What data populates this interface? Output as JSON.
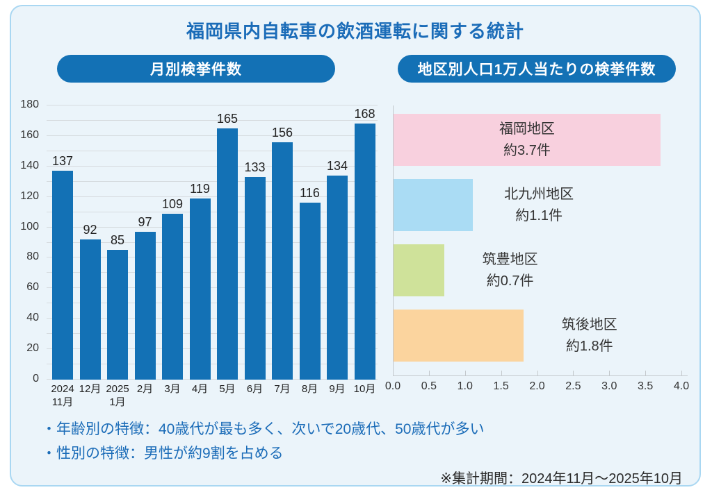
{
  "card": {
    "title": "福岡県内自転車の飲酒運転に関する統計",
    "bullets": [
      "・年齢別の特徴：40歳代が最も多く、次いで20歳代、50歳代が多い",
      "・性別の特徴：男性が約9割を占める"
    ],
    "note": "※集計期間：2024年11月～2025年10月"
  },
  "colors": {
    "accent_blue": "#1371b5",
    "title_blue": "#1b6cb8",
    "card_bg": "#ebf4fa",
    "card_border": "#a9d7f2",
    "gridline": "#d6dbdf",
    "axis_line": "#c3c8cc",
    "text_dark": "#2b2b2b"
  },
  "chart_data": [
    {
      "type": "bar",
      "orientation": "vertical",
      "title": "月別検挙件数",
      "categories": [
        "2024|11月",
        "12月",
        "2025|1月",
        "2月",
        "3月",
        "4月",
        "5月",
        "6月",
        "7月",
        "8月",
        "9月",
        "10月"
      ],
      "values": [
        137,
        92,
        85,
        97,
        109,
        119,
        165,
        133,
        156,
        116,
        134,
        168
      ],
      "ylim": [
        0,
        180
      ],
      "y_major_ticks": [
        0,
        20,
        40,
        60,
        80,
        100,
        120,
        140,
        160,
        180
      ],
      "y_minor_step": 10,
      "grid": true,
      "bar_color": "#1371b5"
    },
    {
      "type": "bar",
      "orientation": "horizontal",
      "title": "地区別人口1万人当たりの検挙件数",
      "categories": [
        "福岡地区",
        "北九州地区",
        "筑豊地区",
        "筑後地区"
      ],
      "values": [
        3.7,
        1.1,
        0.7,
        1.8
      ],
      "value_labels": [
        "約3.7件",
        "約1.1件",
        "約0.7件",
        "約1.8件"
      ],
      "bar_colors": [
        "#f8d0de",
        "#aadcf4",
        "#cfe29a",
        "#fbd49e"
      ],
      "label_inside": [
        true,
        false,
        false,
        false
      ],
      "xlim": [
        0,
        4.0
      ],
      "x_ticks": [
        "0.0",
        "0.5",
        "1.0",
        "1.5",
        "2.0",
        "2.5",
        "3.0",
        "3.5",
        "4.0"
      ],
      "grid": false
    }
  ]
}
